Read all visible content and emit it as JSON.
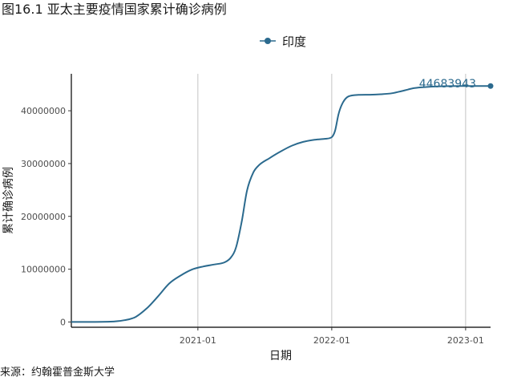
{
  "page": {
    "title": "图16.1 亚太主要疫情国家累计确诊病例",
    "source": "来源：约翰霍普金斯大学"
  },
  "chart_data": {
    "type": "line",
    "xlabel": "日期",
    "ylabel": "累计确诊病例",
    "legend_position": "top",
    "grid": "vertical major gridlines only",
    "xlim": [
      "2020-01-22",
      "2023-03-10"
    ],
    "ylim": [
      -1000000,
      47000000
    ],
    "x_ticks": [
      "2021-01",
      "2022-01",
      "2023-01"
    ],
    "y_ticks": [
      "0",
      "10000000",
      "20000000",
      "30000000",
      "40000000"
    ],
    "y_tick_values": [
      0,
      10000000,
      20000000,
      30000000,
      40000000
    ],
    "series": [
      {
        "name": "印度",
        "color": "#2b6a8e",
        "marker": "circle",
        "end_label": "44683943",
        "x": [
          "2020-01-22",
          "2020-03-01",
          "2020-04-15",
          "2020-05-15",
          "2020-06-15",
          "2020-07-15",
          "2020-08-15",
          "2020-09-15",
          "2020-10-15",
          "2020-11-15",
          "2020-12-15",
          "2021-01-15",
          "2021-02-15",
          "2021-03-15",
          "2021-04-01",
          "2021-04-15",
          "2021-05-01",
          "2021-05-15",
          "2021-06-01",
          "2021-06-15",
          "2021-07-15",
          "2021-08-15",
          "2021-09-15",
          "2021-10-15",
          "2021-11-15",
          "2021-12-15",
          "2022-01-01",
          "2022-01-10",
          "2022-01-20",
          "2022-01-31",
          "2022-02-15",
          "2022-03-15",
          "2022-04-15",
          "2022-05-15",
          "2022-06-15",
          "2022-07-15",
          "2022-08-15",
          "2022-09-15",
          "2022-10-15",
          "2022-11-15",
          "2022-12-15",
          "2023-01-15",
          "2023-02-15",
          "2023-03-10"
        ],
        "y": [
          0,
          3000,
          12000,
          80000,
          330000,
          940000,
          2600000,
          4900000,
          7300000,
          8800000,
          9900000,
          10500000,
          10900000,
          11300000,
          12200000,
          14100000,
          19200000,
          24900000,
          28300000,
          29600000,
          31000000,
          32300000,
          33400000,
          34100000,
          34500000,
          34700000,
          35000000,
          36200000,
          39500000,
          41500000,
          42700000,
          43000000,
          43040000,
          43130000,
          43320000,
          43800000,
          44300000,
          44500000,
          44620000,
          44660000,
          44675000,
          44680000,
          44683000,
          44683943
        ]
      }
    ]
  }
}
